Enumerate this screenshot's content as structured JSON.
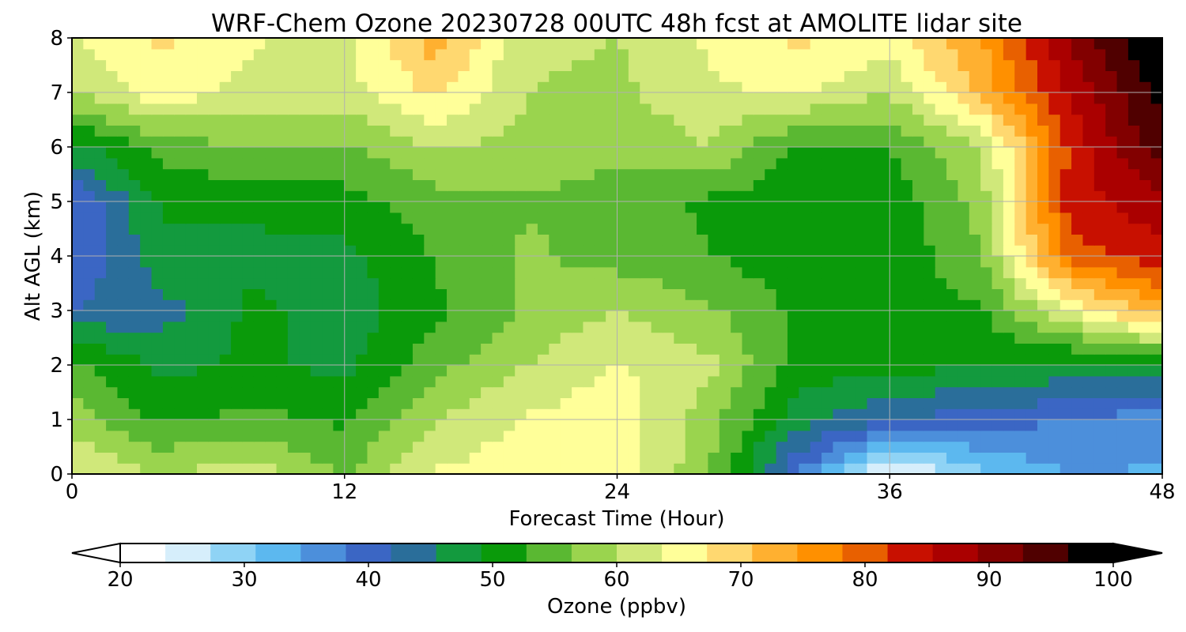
{
  "chart_data": {
    "type": "heatmap",
    "title": "WRF-Chem Ozone  20230728 00UTC 48h fcst at AMOLITE lidar site",
    "xlabel": "Forecast Time (Hour)",
    "ylabel": "Alt AGL (km)",
    "xlim": [
      0,
      48
    ],
    "ylim": [
      0,
      8
    ],
    "x_ticks": [
      0,
      12,
      24,
      36,
      48
    ],
    "y_ticks": [
      0,
      1,
      2,
      3,
      4,
      5,
      6,
      7,
      8
    ],
    "grid": true,
    "x": [
      0,
      4,
      8,
      12,
      16,
      20,
      24,
      28,
      32,
      36,
      40,
      44,
      48
    ],
    "y": [
      0,
      1,
      2,
      3,
      4,
      5,
      6,
      7,
      8
    ],
    "z": [
      [
        64,
        60,
        62,
        56,
        64,
        66,
        66,
        57,
        38,
        22,
        30,
        35,
        34
      ],
      [
        58,
        52,
        54,
        52,
        60,
        64,
        66,
        58,
        47,
        42,
        40,
        38,
        36
      ],
      [
        54,
        48,
        50,
        48,
        55,
        60,
        64,
        61,
        51,
        50,
        50,
        48,
        48
      ],
      [
        42,
        44,
        50,
        47,
        52,
        57,
        60,
        57,
        52,
        51,
        52,
        64,
        74
      ],
      [
        38,
        48,
        48,
        48,
        53,
        57,
        55,
        53,
        50,
        50,
        56,
        80,
        84
      ],
      [
        38,
        50,
        50,
        51,
        55,
        56,
        55,
        52,
        50,
        50,
        58,
        84,
        88
      ],
      [
        48,
        54,
        57,
        56,
        60,
        59,
        57,
        60,
        52,
        53,
        60,
        83,
        95
      ],
      [
        60,
        66,
        62,
        62,
        68,
        60,
        59,
        63,
        64,
        60,
        72,
        86,
        98
      ],
      [
        63,
        68,
        64,
        63,
        73,
        61,
        60,
        64,
        68,
        66,
        74,
        90,
        102
      ]
    ],
    "colorbar": {
      "label": "Ozone  (ppbv)",
      "ticks": [
        20,
        30,
        40,
        50,
        60,
        70,
        80,
        90,
        100
      ],
      "min": 20,
      "max": 100,
      "extend": "both",
      "colors": [
        "#ffffff",
        "#d6eefb",
        "#8fd3f5",
        "#5cb8ef",
        "#4c8fdb",
        "#3b66c4",
        "#2a6e9a",
        "#139a3e",
        "#0a9a0a",
        "#5ab832",
        "#9ad44e",
        "#d0e87a",
        "#ffff99",
        "#ffd870",
        "#ffb030",
        "#ff9000",
        "#e86000",
        "#c81000",
        "#aa0000",
        "#820000",
        "#500000",
        "#000000"
      ],
      "under_color": "#ffffff",
      "over_color": "#000000"
    }
  }
}
